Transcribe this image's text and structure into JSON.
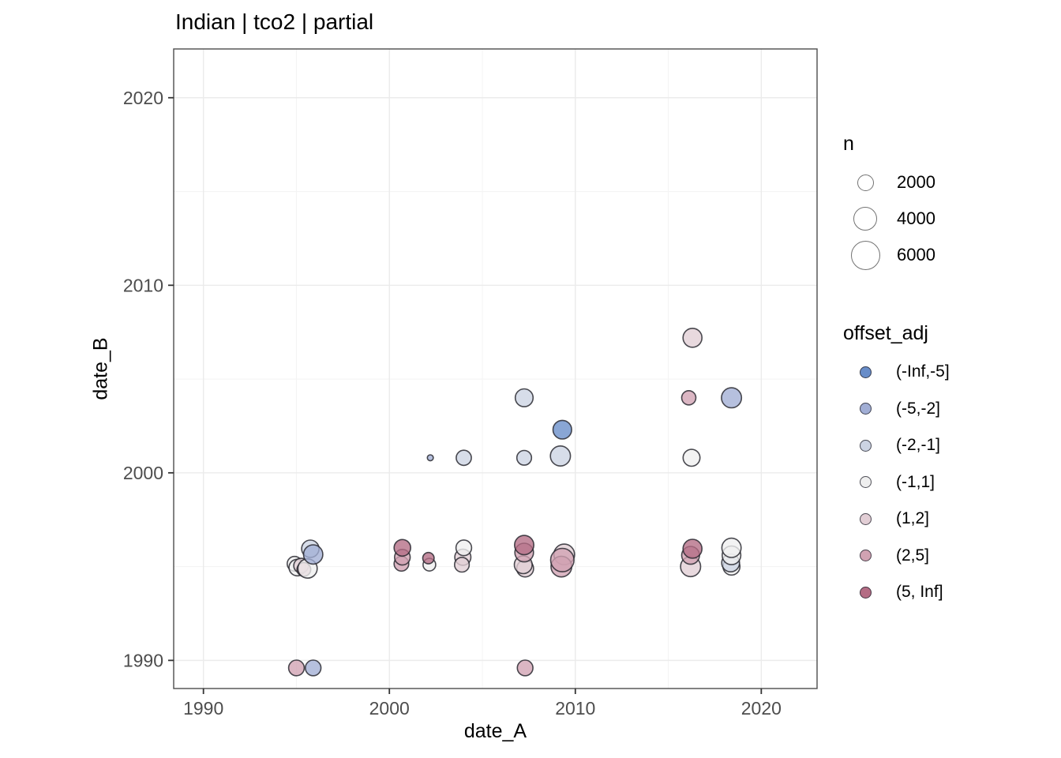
{
  "chart_data": {
    "type": "scatter",
    "title": "Indian | tco2 | partial",
    "xlabel": "date_A",
    "ylabel": "date_B",
    "xlim": [
      1988.4,
      2023.0
    ],
    "ylim": [
      1988.5,
      2022.6
    ],
    "x_ticks": [
      1990,
      2000,
      2010,
      2020
    ],
    "y_ticks": [
      1990,
      2000,
      2010,
      2020
    ],
    "x_minor_ticks": [
      1995,
      2005,
      2015
    ],
    "y_minor_ticks": [
      1995,
      2005,
      2015
    ],
    "grid": "major+minor",
    "legend_position": "right",
    "grid_major_color": "#ebebeb",
    "grid_minor_color": "#f4f4f4",
    "panel_border_color": "#4d4d4d",
    "tick_label_color": "#4d4d4d",
    "point_stroke_color": "#23232b",
    "size_legend": {
      "title": "n",
      "values": [
        2000,
        4000,
        6000
      ],
      "labels": [
        "2000",
        "4000",
        "6000"
      ]
    },
    "color_legend": {
      "title": "offset_adj",
      "bins": [
        {
          "label": "(-Inf,-5]",
          "color": "#688dc9"
        },
        {
          "label": "(-5,-2]",
          "color": "#a1aed5"
        },
        {
          "label": "(-2,-1]",
          "color": "#ccd3e3"
        },
        {
          "label": "(-1,1]",
          "color": "#efefef"
        },
        {
          "label": "(1,2]",
          "color": "#e2ced5"
        },
        {
          "label": "(2,5]",
          "color": "#d1a2b2"
        },
        {
          "label": "(5, Inf]",
          "color": "#b46c84"
        }
      ]
    },
    "points": [
      {
        "x": 1994.9,
        "y": 1995.15,
        "n": 1500,
        "bin": "(-1,1]"
      },
      {
        "x": 1995.05,
        "y": 1994.95,
        "n": 1900,
        "bin": "(-1,1]"
      },
      {
        "x": 1995.25,
        "y": 1995.05,
        "n": 1500,
        "bin": "(1,2]"
      },
      {
        "x": 1995.4,
        "y": 1994.85,
        "n": 1300,
        "bin": "(2,5]"
      },
      {
        "x": 1995.6,
        "y": 1994.9,
        "n": 2600,
        "bin": "(-1,1]"
      },
      {
        "x": 1995.75,
        "y": 1995.95,
        "n": 2100,
        "bin": "(-2,-1]"
      },
      {
        "x": 1995.9,
        "y": 1995.65,
        "n": 2600,
        "bin": "(-5,-2]"
      },
      {
        "x": 1995.0,
        "y": 1989.6,
        "n": 1700,
        "bin": "(2,5]"
      },
      {
        "x": 1995.9,
        "y": 1989.6,
        "n": 1700,
        "bin": "(-5,-2]"
      },
      {
        "x": 2000.65,
        "y": 1995.15,
        "n": 1500,
        "bin": "(2,5]"
      },
      {
        "x": 2000.7,
        "y": 1995.5,
        "n": 1700,
        "bin": "(2,5]"
      },
      {
        "x": 2000.7,
        "y": 1996.0,
        "n": 1900,
        "bin": "(5, Inf]"
      },
      {
        "x": 2002.15,
        "y": 1995.1,
        "n": 1100,
        "bin": "(-1,1]"
      },
      {
        "x": 2002.1,
        "y": 1995.45,
        "n": 900,
        "bin": "(5, Inf]"
      },
      {
        "x": 2002.2,
        "y": 2000.8,
        "n": 250,
        "bin": "(-5,-2]"
      },
      {
        "x": 2004.0,
        "y": 2000.8,
        "n": 1600,
        "bin": "(-2,-1]"
      },
      {
        "x": 2003.95,
        "y": 1995.5,
        "n": 1800,
        "bin": "(1,2]"
      },
      {
        "x": 2003.9,
        "y": 1995.1,
        "n": 1500,
        "bin": "(1,2]"
      },
      {
        "x": 2004.0,
        "y": 1996.0,
        "n": 1700,
        "bin": "(-1,1]"
      },
      {
        "x": 2007.25,
        "y": 2004.0,
        "n": 2200,
        "bin": "(-2,-1]"
      },
      {
        "x": 2007.25,
        "y": 2000.8,
        "n": 1500,
        "bin": "(-2,-1]"
      },
      {
        "x": 2007.3,
        "y": 1989.6,
        "n": 1700,
        "bin": "(2,5]"
      },
      {
        "x": 2007.3,
        "y": 1994.9,
        "n": 2000,
        "bin": "(1,2]"
      },
      {
        "x": 2007.2,
        "y": 1995.1,
        "n": 2200,
        "bin": "(1,2]"
      },
      {
        "x": 2007.25,
        "y": 1995.75,
        "n": 2400,
        "bin": "(2,5]"
      },
      {
        "x": 2007.25,
        "y": 1996.15,
        "n": 2600,
        "bin": "(5, Inf]"
      },
      {
        "x": 2009.3,
        "y": 2002.3,
        "n": 2400,
        "bin": "(-Inf,-5]"
      },
      {
        "x": 2009.2,
        "y": 2000.9,
        "n": 2800,
        "bin": "(-2,-1]"
      },
      {
        "x": 2009.4,
        "y": 1995.65,
        "n": 3000,
        "bin": "(1,2]"
      },
      {
        "x": 2009.25,
        "y": 1995.0,
        "n": 3000,
        "bin": "(2,5]"
      },
      {
        "x": 2009.3,
        "y": 1995.35,
        "n": 3800,
        "bin": "(2,5]"
      },
      {
        "x": 2016.3,
        "y": 2007.2,
        "n": 2500,
        "bin": "(1,2]"
      },
      {
        "x": 2016.1,
        "y": 2004.0,
        "n": 1400,
        "bin": "(2,5]"
      },
      {
        "x": 2018.4,
        "y": 2004.0,
        "n": 2800,
        "bin": "(-5,-2]"
      },
      {
        "x": 2016.25,
        "y": 2000.8,
        "n": 2000,
        "bin": "(-1,1]"
      },
      {
        "x": 2016.2,
        "y": 1995.0,
        "n": 2800,
        "bin": "(1,2]"
      },
      {
        "x": 2016.2,
        "y": 1995.6,
        "n": 2200,
        "bin": "(2,5]"
      },
      {
        "x": 2016.3,
        "y": 1995.95,
        "n": 2500,
        "bin": "(5, Inf]"
      },
      {
        "x": 2018.4,
        "y": 1995.0,
        "n": 2000,
        "bin": "(-1,1]"
      },
      {
        "x": 2018.35,
        "y": 1995.2,
        "n": 2200,
        "bin": "(-2,-1]"
      },
      {
        "x": 2018.4,
        "y": 1995.6,
        "n": 2400,
        "bin": "(-1,1]"
      },
      {
        "x": 2018.4,
        "y": 1996.0,
        "n": 2600,
        "bin": "(-1,1]"
      }
    ]
  }
}
